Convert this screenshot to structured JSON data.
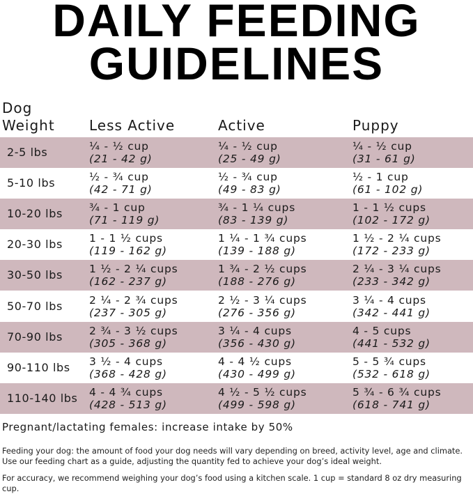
{
  "title": {
    "line1": "DAILY FEEDING",
    "line2": "GUIDELINES"
  },
  "columns": {
    "weight_line1": "Dog",
    "weight_line2": "Weight",
    "less_active": "Less Active",
    "active": "Active",
    "puppy": "Puppy"
  },
  "band_color": "#cfb8bd",
  "rows": [
    {
      "weight": "2-5 lbs",
      "less_active": {
        "cups": "¼ - ½ cup",
        "grams": "(21 - 42 g)"
      },
      "active": {
        "cups": "¼ - ½ cup",
        "grams": "(25 - 49 g)"
      },
      "puppy": {
        "cups": "¼ - ½ cup",
        "grams": "(31 - 61 g)"
      }
    },
    {
      "weight": "5-10 lbs",
      "less_active": {
        "cups": "½ - ¾ cup",
        "grams": "(42 - 71 g)"
      },
      "active": {
        "cups": "½ - ¾ cup",
        "grams": "(49 - 83 g)"
      },
      "puppy": {
        "cups": "½ - 1 cup",
        "grams": "(61 - 102 g)"
      }
    },
    {
      "weight": "10-20 lbs",
      "less_active": {
        "cups": "¾ - 1 cup",
        "grams": "(71 - 119 g)"
      },
      "active": {
        "cups": "¾ - 1 ¼ cups",
        "grams": "(83 - 139 g)"
      },
      "puppy": {
        "cups": "1 - 1 ½ cups",
        "grams": "(102 - 172 g)"
      }
    },
    {
      "weight": "20-30 lbs",
      "less_active": {
        "cups": "1 - 1 ½ cups",
        "grams": "(119 - 162 g)"
      },
      "active": {
        "cups": "1 ¼ - 1 ¾ cups",
        "grams": "(139 - 188 g)"
      },
      "puppy": {
        "cups": "1 ½ - 2 ¼ cups",
        "grams": "(172 - 233 g)"
      }
    },
    {
      "weight": "30-50 lbs",
      "less_active": {
        "cups": "1 ½ - 2 ¼ cups",
        "grams": "(162 - 237 g)"
      },
      "active": {
        "cups": "1 ¾ - 2 ½ cups",
        "grams": "(188 - 276 g)"
      },
      "puppy": {
        "cups": "2 ¼ - 3 ¼ cups",
        "grams": "(233 - 342 g)"
      }
    },
    {
      "weight": "50-70 lbs",
      "less_active": {
        "cups": "2 ¼ - 2 ¾ cups",
        "grams": "(237 - 305 g)"
      },
      "active": {
        "cups": "2 ½ - 3 ¼ cups",
        "grams": "(276 - 356 g)"
      },
      "puppy": {
        "cups": "3 ¼ - 4 cups",
        "grams": "(342 - 441 g)"
      }
    },
    {
      "weight": "70-90 lbs",
      "less_active": {
        "cups": "2 ¾ - 3 ½ cups",
        "grams": "(305 - 368 g)"
      },
      "active": {
        "cups": "3 ¼ - 4 cups",
        "grams": "(356 - 430 g)"
      },
      "puppy": {
        "cups": "4 - 5 cups",
        "grams": "(441 - 532 g)"
      }
    },
    {
      "weight": "90-110 lbs",
      "less_active": {
        "cups": "3 ½ - 4 cups",
        "grams": "(368 - 428 g)"
      },
      "active": {
        "cups": "4 - 4 ½ cups",
        "grams": "(430 - 499 g)"
      },
      "puppy": {
        "cups": "5 - 5 ¾ cups",
        "grams": "(532 - 618 g)"
      }
    },
    {
      "weight": "110-140 lbs",
      "less_active": {
        "cups": "4 - 4 ¾ cups",
        "grams": "(428 - 513 g)"
      },
      "active": {
        "cups": "4 ½ - 5 ½ cups",
        "grams": "(499 - 598 g)"
      },
      "puppy": {
        "cups": "5 ¾ - 6 ¾ cups",
        "grams": "(618 - 741 g)"
      }
    }
  ],
  "pregnant_note": "Pregnant/lactating females: increase intake by 50%",
  "feeding_note": "Feeding your dog: the amount of food your dog needs will vary depending on breed, activity level, age and climate. Use our feeding chart as a guide, adjusting the quantity fed to achieve your dog’s ideal weight.",
  "accuracy_note": "For accuracy, we recommend weighing your dog’s food using a kitchen scale. 1 cup = standard 8 oz dry measuring cup."
}
